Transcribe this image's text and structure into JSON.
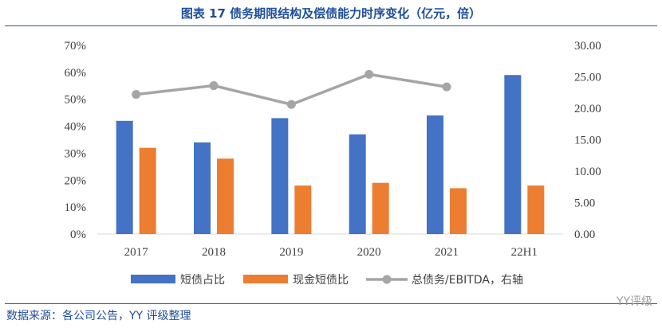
{
  "title": "图表 17 债务期限结构及偿债能力时序变化（亿元，倍）",
  "source_note": "数据来源：各公司公告，YY 评级整理",
  "watermark": "YY评级",
  "colors": {
    "short_debt": "#4472c4",
    "cash_ratio": "#ed7d31",
    "debt_ebitda": "#a5a5a5",
    "title": "#1f4e9a"
  },
  "chart_data": {
    "type": "bar",
    "categories": [
      "2017",
      "2018",
      "2019",
      "2020",
      "2021",
      "22H1"
    ],
    "series": [
      {
        "name": "短债占比",
        "type": "bar",
        "axis": "left",
        "values": [
          0.42,
          0.34,
          0.43,
          0.37,
          0.44,
          0.59
        ]
      },
      {
        "name": "现金短债比",
        "type": "bar",
        "axis": "left",
        "values": [
          0.32,
          0.28,
          0.18,
          0.19,
          0.17,
          0.18
        ]
      },
      {
        "name": "总债务/EBITDA，右轴",
        "type": "line",
        "axis": "right",
        "values": [
          22.2,
          23.6,
          20.6,
          25.4,
          23.4,
          null
        ]
      }
    ],
    "y_left": {
      "ylim": [
        0,
        0.7
      ],
      "ticks": [
        "0%",
        "10%",
        "20%",
        "30%",
        "40%",
        "50%",
        "60%",
        "70%"
      ]
    },
    "y_right": {
      "ylim": [
        0,
        30
      ],
      "ticks": [
        "0.00",
        "5.00",
        "10.00",
        "15.00",
        "20.00",
        "25.00",
        "30.00"
      ]
    },
    "legend_position": "bottom",
    "grid": false
  }
}
